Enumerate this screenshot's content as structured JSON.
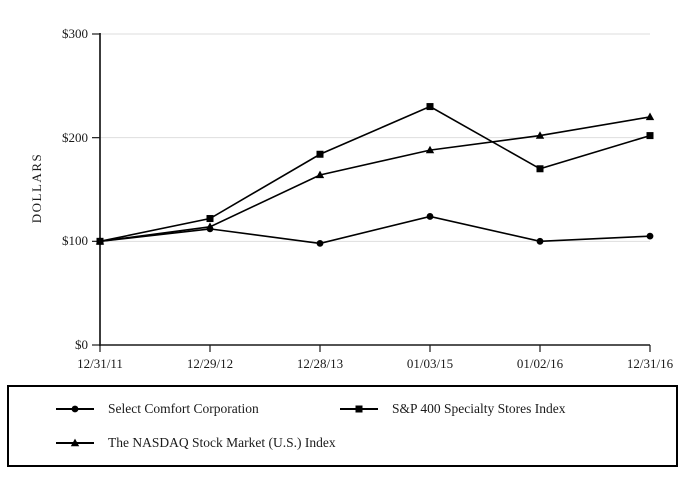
{
  "chart_data": {
    "type": "line",
    "title": "",
    "ylabel": "DOLLARS",
    "xlabel": "",
    "x_labels": [
      "12/31/11",
      "12/29/12",
      "12/28/13",
      "01/03/15",
      "01/02/16",
      "12/31/16"
    ],
    "y_tick_labels": [
      "$0",
      "$100",
      "$200",
      "$300"
    ],
    "ylim": [
      0,
      300
    ],
    "y_tick_step": 100,
    "grid": "horizontal light gridlines at $100, $200, $300",
    "legend_position": "boxed legend below chart, two columns",
    "line_color": "#000000",
    "axis_color": "#1a1a1a",
    "grid_color": "#dedede",
    "series": [
      {
        "name": "Select Comfort Corporation",
        "marker": "circle",
        "values": [
          100,
          112,
          98,
          124,
          100,
          105
        ]
      },
      {
        "name": "S&P 400 Specialty Stores Index",
        "marker": "square",
        "values": [
          100,
          122,
          184,
          230,
          170,
          202
        ]
      },
      {
        "name": "The NASDAQ Stock Market (U.S.) Index",
        "marker": "triangle",
        "values": [
          100,
          114,
          164,
          188,
          202,
          220
        ]
      }
    ]
  }
}
